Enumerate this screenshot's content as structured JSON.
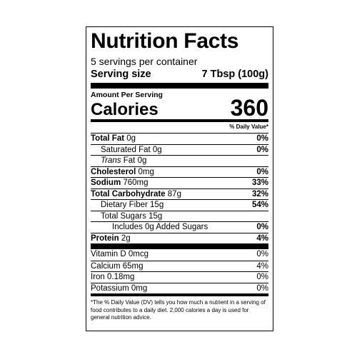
{
  "title": "Nutrition Facts",
  "servings_per_container": "5 servings per container",
  "serving_size": {
    "label": "Serving size",
    "value": "7 Tbsp (100g)"
  },
  "amount_per_serving": "Amount Per Serving",
  "calories": {
    "label": "Calories",
    "value": "360"
  },
  "daily_value_header": "% Daily Value*",
  "nutrients": [
    {
      "bold_name": "Total Fat",
      "amount": "0g",
      "dv": "0%"
    },
    {
      "name": "Saturated Fat",
      "amount": "0g",
      "dv": "0%"
    },
    {
      "italic_name": "Trans",
      "name": "Fat",
      "amount": "0g",
      "dv": ""
    },
    {
      "bold_name": "Cholesterol",
      "amount": "0mg",
      "dv": "0%"
    },
    {
      "bold_name": "Sodium",
      "amount": "760mg",
      "dv": "33%"
    },
    {
      "bold_name": "Total Carbohydrate",
      "amount": "87g",
      "dv": "32%"
    },
    {
      "name": "Dietary Fiber",
      "amount": "15g",
      "dv": "54%"
    },
    {
      "name": "Total Sugars",
      "amount": "15g",
      "dv": ""
    },
    {
      "name": "Includes 0g Added Sugars",
      "amount": "",
      "dv": "0%"
    },
    {
      "bold_name": "Protein",
      "amount": "2g",
      "dv": "4%"
    }
  ],
  "vitamins": [
    {
      "name": "Vitamin D",
      "amount": "0mcg",
      "dv": "0%"
    },
    {
      "name": "Calcium",
      "amount": "65mg",
      "dv": "4%"
    },
    {
      "name": "Iron",
      "amount": "0.18mg",
      "dv": "0%"
    },
    {
      "name": "Potassium",
      "amount": "0mg",
      "dv": "0%"
    }
  ],
  "footnote": "*The % Daily Value (DV) tells you how much a nutrient in a serving of food contributes to a daily diet. 2,000 calories a day is used for general nutrition advice."
}
